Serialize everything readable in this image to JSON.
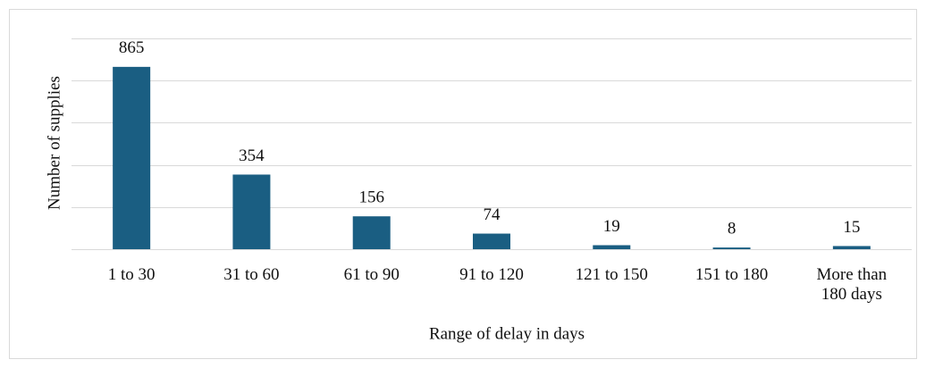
{
  "chart_data": {
    "type": "bar",
    "x_label": "Range of delay in days",
    "y_label": "Number of supplies",
    "categories": [
      "1 to 30",
      "31 to 60",
      "61 to 90",
      "91 to 120",
      "121 to 150",
      "151 to 180",
      "More than 180 days"
    ],
    "values": [
      865,
      354,
      156,
      74,
      19,
      8,
      15
    ],
    "color": "#1a5e82",
    "ylim": [
      0,
      1000
    ],
    "yticks": [
      0,
      200,
      400,
      600,
      800,
      1000
    ],
    "grid": true
  }
}
